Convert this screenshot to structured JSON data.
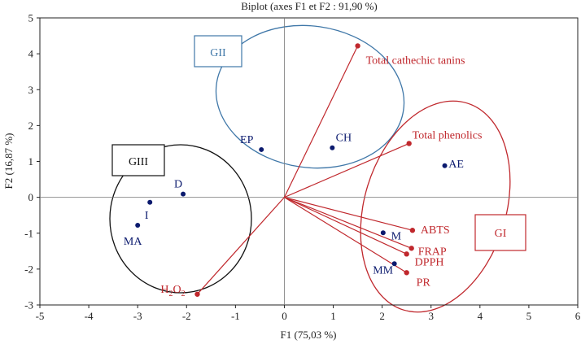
{
  "chart_data": {
    "type": "scatter",
    "title": "Biplot (axes F1 et F2 : 91,90 %)",
    "xlabel": "F1 (75,03 %)",
    "ylabel": "F2 (16,87 %)",
    "xlim": [
      -5,
      6
    ],
    "ylim": [
      -3,
      5
    ],
    "x_ticks": [
      -5,
      -4,
      -3,
      -2,
      -1,
      0,
      1,
      2,
      3,
      4,
      5,
      6
    ],
    "y_ticks": [
      -3,
      -2,
      -1,
      0,
      1,
      2,
      3,
      4,
      5
    ],
    "grid": false,
    "observations_color": "#0b1a6e",
    "variables_color": "#c0282d",
    "observations": [
      {
        "label": "EP",
        "x": -0.47,
        "y": 1.33
      },
      {
        "label": "CH",
        "x": 0.98,
        "y": 1.38
      },
      {
        "label": "AE",
        "x": 3.28,
        "y": 0.88
      },
      {
        "label": "D",
        "x": -2.07,
        "y": 0.09
      },
      {
        "label": "I",
        "x": -2.75,
        "y": -0.14
      },
      {
        "label": "MA",
        "x": -3.0,
        "y": -0.78
      },
      {
        "label": "M",
        "x": 2.02,
        "y": -0.99
      },
      {
        "label": "MM",
        "x": 2.25,
        "y": -1.85
      }
    ],
    "variables": [
      {
        "label": "Total cathechic tanins",
        "x": 1.5,
        "y": 4.22
      },
      {
        "label": "Total phenolics",
        "x": 2.55,
        "y": 1.5
      },
      {
        "label": "ABTS",
        "x": 2.62,
        "y": -0.92
      },
      {
        "label": "FRAP",
        "x": 2.6,
        "y": -1.42
      },
      {
        "label": "DPPH",
        "x": 2.5,
        "y": -1.58
      },
      {
        "label": "PR",
        "x": 2.5,
        "y": -2.1
      },
      {
        "label": "H2O2",
        "x": -1.78,
        "y": -2.7
      }
    ],
    "groups": [
      {
        "label": "GI",
        "color": "#c0282d"
      },
      {
        "label": "GII",
        "color": "#3f77a8"
      },
      {
        "label": "GIII",
        "color": "#111111"
      }
    ]
  }
}
